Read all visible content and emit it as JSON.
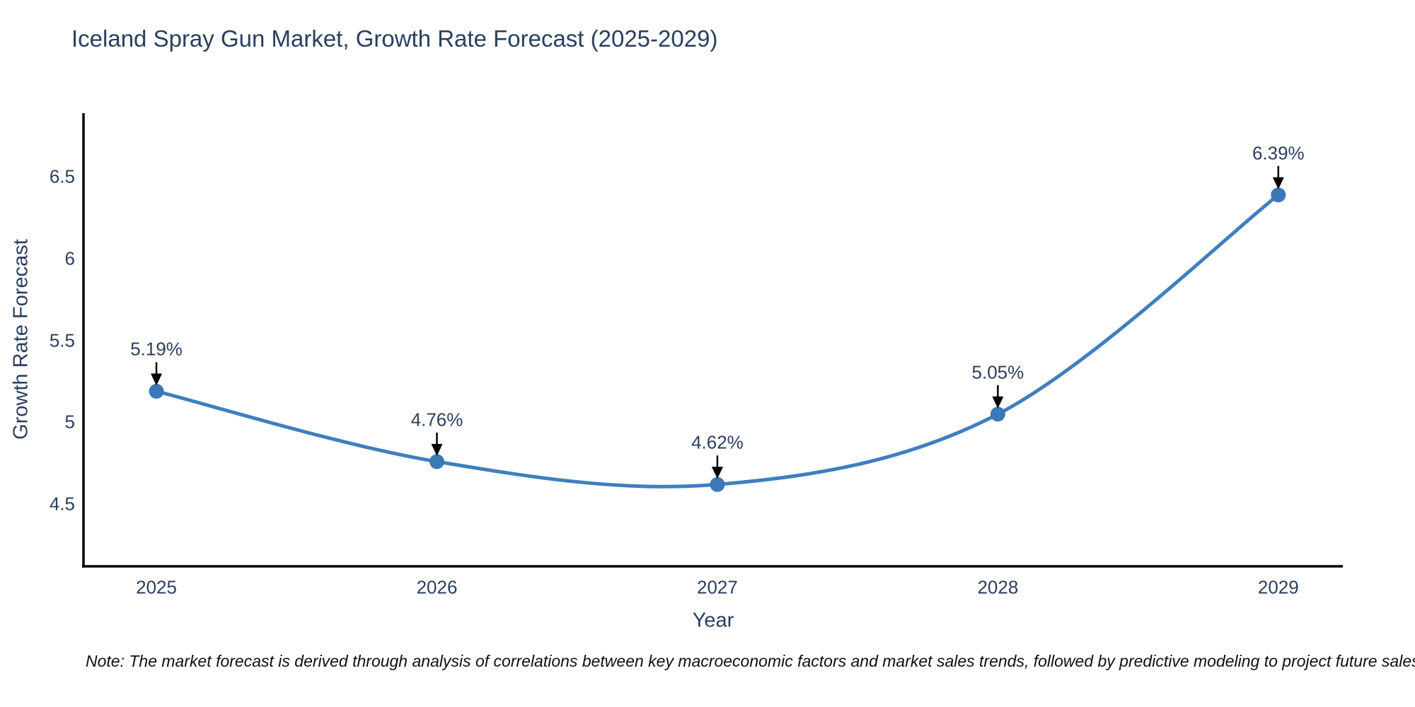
{
  "chart_data": {
    "type": "line",
    "title": "Iceland Spray Gun Market, Growth Rate Forecast (2025-2029)",
    "x": [
      2025,
      2026,
      2027,
      2028,
      2029
    ],
    "y": [
      5.19,
      4.76,
      4.62,
      5.05,
      6.39
    ],
    "point_labels": [
      "5.19%",
      "4.76%",
      "4.62%",
      "5.05%",
      "6.39%"
    ],
    "xtick_labels": [
      "2025",
      "2026",
      "2027",
      "2028",
      "2029"
    ],
    "yticks": [
      4.5,
      5,
      5.5,
      6,
      6.5
    ],
    "ytick_labels": [
      "4.5",
      "5",
      "5.5",
      "6",
      "6.5"
    ],
    "xlabel": "Year",
    "ylabel": "Growth Rate Forecast",
    "xlim": [
      2024.74,
      2029.23
    ],
    "ylim": [
      4.12,
      6.89
    ],
    "grid": false,
    "legend": "none",
    "line_shape": "spline",
    "line_color": "#3f7fbf",
    "marker_color": "#3a78b8",
    "axis_line_color": "#000000",
    "arrow_color": "#000000",
    "text_color": "#2a3f5f",
    "note": "Note: The market forecast is derived through analysis of correlations between key macroeconomic factors and market sales trends, followed by predictive modeling to project future sales"
  }
}
